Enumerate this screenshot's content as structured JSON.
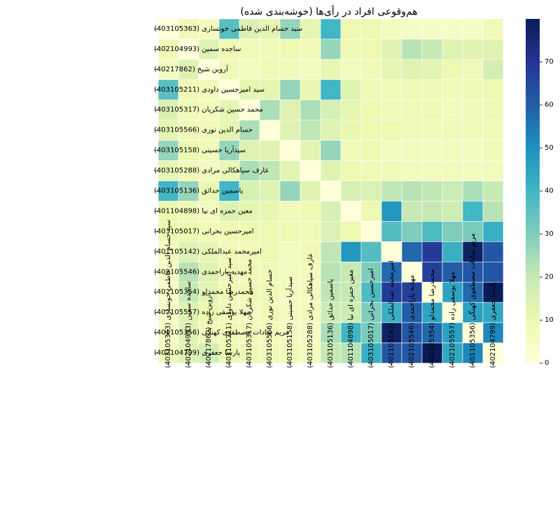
{
  "chart_data": {
    "type": "heatmap",
    "title": "هم‌وقوعی افراد در رأی‌ها (خوشه‌بندی شده)",
    "labels": [
      "سید حسام الدین فاطمی خونساری (403105363)",
      "ساجده  سمین (402104993)",
      "آروین شیخ (40217862)",
      "سید امیرحسین داودی (403105211)",
      "محمد حسین شکریان (403105317)",
      "حسام الدین  نوری (403105566)",
      "سیدآریا حسینی (403105158)",
      "عارف سپاهکالی مرادی (403105288)",
      "یاسمین  حدائق (403105136)",
      "معین حمزه ای نیا (401104898)",
      "امیرحسین بحرانی (403105017)",
      "امیرمحمد عبدالملکی (401105142)",
      "مهدیه پاراحمدی (402105546)",
      "محمدرضا محمدلو (402105354)",
      "مهلا یوسفی زاده (402105557)",
      "مریم سادات مصطفوی کهنگی (401105356)",
      "پارسا جعفری (402104799)"
    ],
    "matrix": [
      [
        0,
        8,
        6,
        36,
        15,
        12,
        27,
        12,
        40,
        10,
        10,
        6,
        5,
        5,
        5,
        5,
        8
      ],
      [
        8,
        0,
        14,
        9,
        8,
        8,
        10,
        8,
        27,
        9,
        10,
        14,
        22,
        20,
        14,
        14,
        14
      ],
      [
        6,
        14,
        0,
        8,
        7,
        8,
        8,
        7,
        11,
        7,
        8,
        12,
        14,
        13,
        10,
        8,
        17
      ],
      [
        36,
        9,
        8,
        0,
        12,
        12,
        27,
        11,
        40,
        14,
        9,
        8,
        9,
        9,
        8,
        9,
        10
      ],
      [
        15,
        8,
        7,
        12,
        0,
        24,
        14,
        24,
        16,
        12,
        10,
        8,
        8,
        9,
        7,
        8,
        9
      ],
      [
        12,
        8,
        8,
        12,
        24,
        0,
        14,
        21,
        14,
        11,
        10,
        10,
        8,
        8,
        8,
        8,
        8
      ],
      [
        27,
        10,
        8,
        27,
        14,
        14,
        0,
        13,
        27,
        8,
        10,
        6,
        7,
        6,
        6,
        6,
        8
      ],
      [
        12,
        8,
        7,
        11,
        24,
        21,
        13,
        0,
        14,
        10,
        8,
        8,
        7,
        7,
        7,
        6,
        7
      ],
      [
        40,
        27,
        11,
        40,
        16,
        14,
        27,
        14,
        0,
        16,
        15,
        21,
        22,
        21,
        19,
        24,
        20
      ],
      [
        10,
        9,
        7,
        14,
        12,
        11,
        8,
        10,
        16,
        0,
        10,
        48,
        20,
        20,
        18,
        40,
        22
      ],
      [
        10,
        10,
        8,
        9,
        10,
        10,
        10,
        8,
        15,
        10,
        0,
        37,
        30,
        38,
        30,
        31,
        42
      ],
      [
        6,
        14,
        12,
        8,
        8,
        10,
        6,
        8,
        21,
        48,
        37,
        0,
        58,
        68,
        42,
        78,
        62
      ],
      [
        5,
        22,
        14,
        9,
        8,
        8,
        7,
        7,
        22,
        20,
        30,
        58,
        0,
        67,
        60,
        62,
        62
      ],
      [
        5,
        20,
        13,
        9,
        9,
        8,
        6,
        7,
        21,
        20,
        38,
        68,
        67,
        0,
        45,
        58,
        80
      ],
      [
        5,
        14,
        10,
        8,
        7,
        8,
        6,
        7,
        19,
        18,
        30,
        42,
        60,
        45,
        0,
        46,
        44
      ],
      [
        5,
        14,
        8,
        9,
        8,
        8,
        6,
        6,
        24,
        40,
        31,
        78,
        62,
        58,
        46,
        0,
        52
      ],
      [
        8,
        14,
        17,
        10,
        9,
        8,
        8,
        7,
        20,
        22,
        42,
        62,
        62,
        80,
        44,
        52,
        0
      ]
    ],
    "vmin": 0,
    "vmax": 80,
    "colormap": "YlGnBu",
    "colorbar_ticks": [
      0,
      10,
      20,
      30,
      40,
      50,
      60,
      70
    ],
    "grid": true,
    "legend": "colorbar-right"
  }
}
